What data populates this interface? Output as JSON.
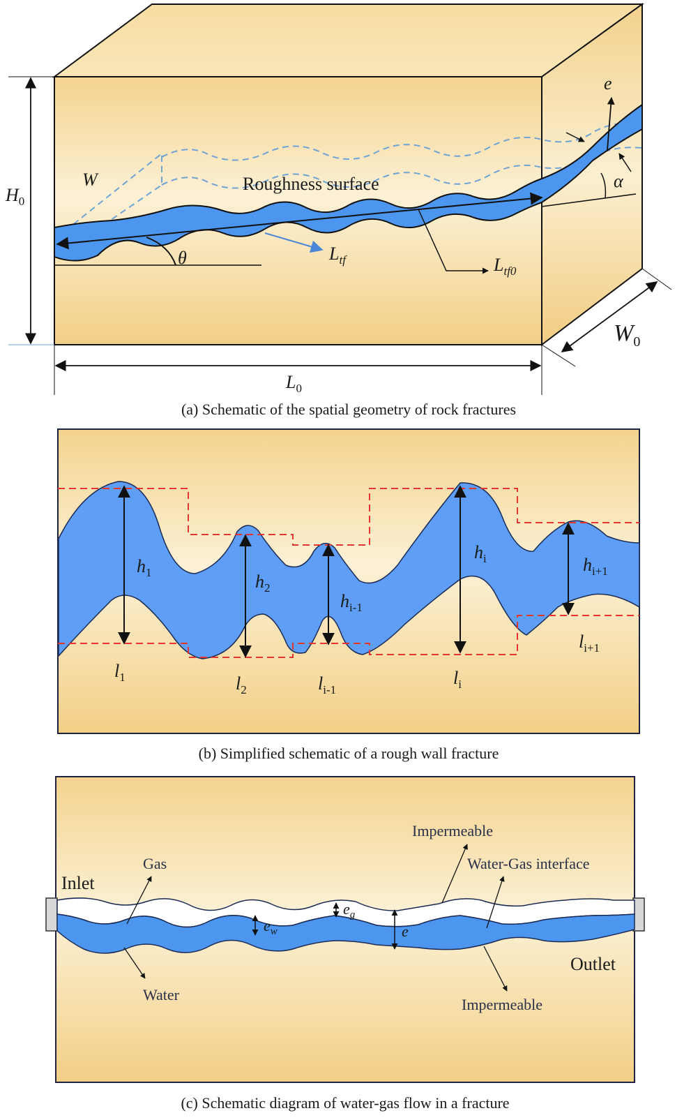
{
  "panel_a": {
    "caption": "(a) Schematic of the spatial geometry of rock fractures",
    "label_H": "H",
    "label_H_sub": "0",
    "label_L": "L",
    "label_L_sub": "0",
    "label_W0": "W",
    "label_W0_sub": "0",
    "label_W": "W",
    "label_roughness": "Roughness surface",
    "label_e": "e",
    "label_alpha": "α",
    "label_theta": "θ",
    "label_Ltf": "L",
    "label_Ltf_sub": "tf",
    "label_Ltf0": "L",
    "label_Ltf0_sub": "tf0"
  },
  "panel_b": {
    "caption": "(b) Simplified schematic of a rough wall fracture",
    "h_labels": [
      {
        "base": "h",
        "sub": "1"
      },
      {
        "base": "h",
        "sub": "2"
      },
      {
        "base": "h",
        "sub": "i-1"
      },
      {
        "base": "h",
        "sub": "i"
      },
      {
        "base": "h",
        "sub": "i+1"
      }
    ],
    "l_labels": [
      {
        "base": "l",
        "sub": "1"
      },
      {
        "base": "l",
        "sub": "2"
      },
      {
        "base": "l",
        "sub": "i-1"
      },
      {
        "base": "l",
        "sub": "i"
      },
      {
        "base": "l",
        "sub": "i+1"
      }
    ]
  },
  "panel_c": {
    "caption": "(c) Schematic diagram of water-gas flow in a fracture",
    "inlet": "Inlet",
    "outlet": "Outlet",
    "gas": "Gas",
    "water": "Water",
    "impermeable_top": "Impermeable",
    "impermeable_bottom": "Impermeable",
    "interface": "Water-Gas interface",
    "e_w": "e",
    "e_w_sub": "w",
    "e_g": "e",
    "e_g_sub": "g",
    "e": "e"
  },
  "colors": {
    "rock": "#f6d99a",
    "rock_light": "#fbf0d2",
    "fracture": "#4d96f0",
    "dashed_blue": "#6fa3d6",
    "dashed_red": "#e4352f",
    "frame": "#1b2340"
  }
}
